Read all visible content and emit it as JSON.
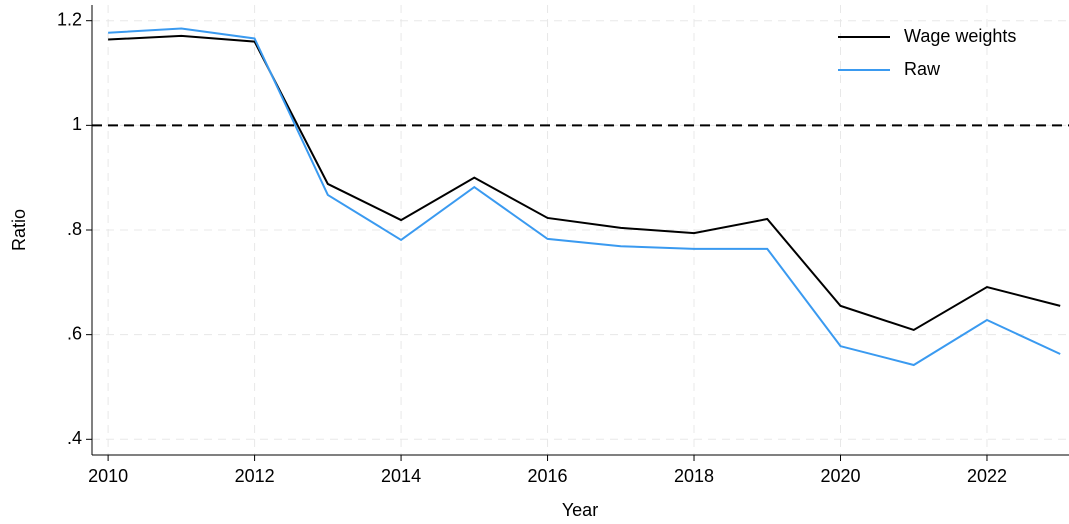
{
  "chart_data": {
    "type": "line",
    "x": [
      2010,
      2011,
      2012,
      2013,
      2014,
      2015,
      2016,
      2017,
      2018,
      2019,
      2020,
      2021,
      2022,
      2023
    ],
    "series": [
      {
        "name": "Wage weights",
        "color": "#000000",
        "values": [
          1.164,
          1.171,
          1.16,
          0.888,
          0.819,
          0.9,
          0.823,
          0.804,
          0.794,
          0.821,
          0.655,
          0.609,
          0.691,
          0.655
        ]
      },
      {
        "name": "Raw",
        "color": "#3a9af0",
        "values": [
          1.177,
          1.185,
          1.166,
          0.867,
          0.781,
          0.882,
          0.783,
          0.769,
          0.764,
          0.764,
          0.578,
          0.542,
          0.628,
          0.563
        ]
      }
    ],
    "xlabel": "Year",
    "ylabel": "Ratio",
    "xlim": [
      2009.78,
      2023.12
    ],
    "xticks": [
      2010,
      2012,
      2014,
      2016,
      2018,
      2020,
      2022
    ],
    "ylim": [
      0.37,
      1.23
    ],
    "yticks": [
      {
        "value": 0.4,
        "label": ".4"
      },
      {
        "value": 0.6,
        "label": ".6"
      },
      {
        "value": 0.8,
        "label": ".8"
      },
      1,
      1.2
    ],
    "hline": 1,
    "grid": true,
    "legend": "top-right"
  }
}
